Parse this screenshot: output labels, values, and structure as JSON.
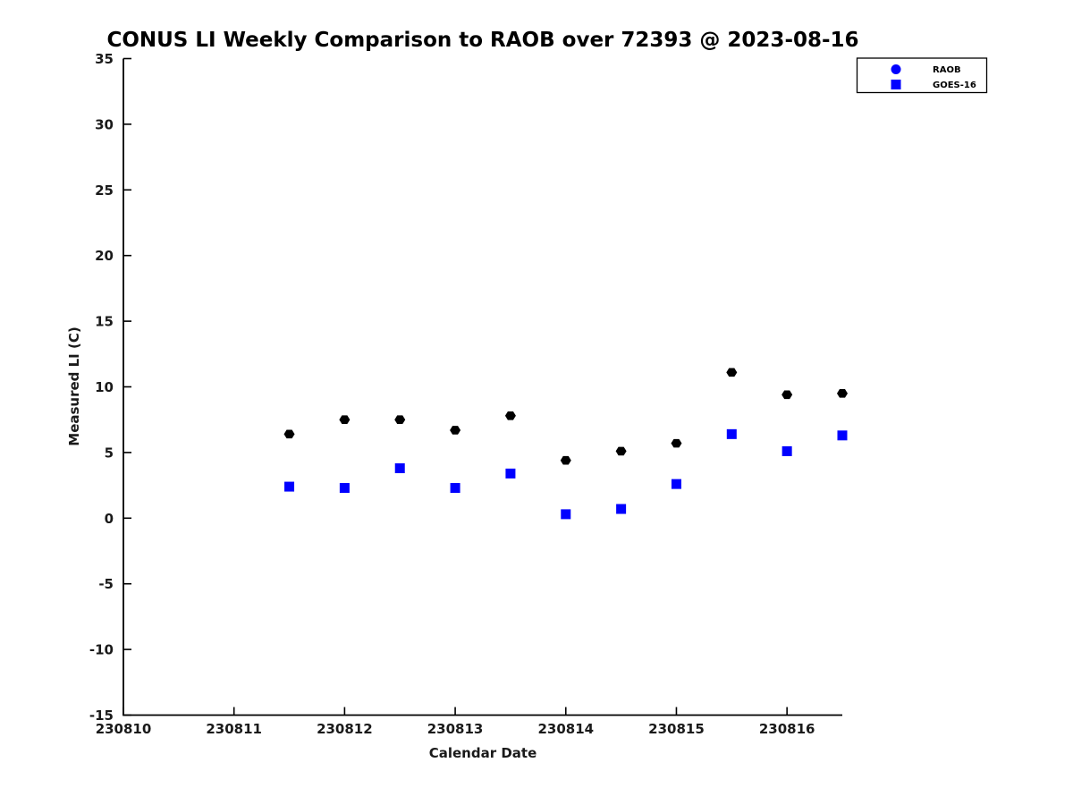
{
  "figure": {
    "background_color": "#ffffff"
  },
  "chart_data": {
    "type": "scatter",
    "title": "CONUS LI Weekly Comparison to RAOB over 72393 @ 2023-08-16",
    "xlabel": "Calendar Date",
    "ylabel": "Measured LI (C)",
    "xlim": [
      230810,
      230816.5
    ],
    "ylim": [
      -15,
      35
    ],
    "x_ticks": [
      230810,
      230811,
      230812,
      230813,
      230814,
      230815,
      230816
    ],
    "y_ticks": [
      -15,
      -10,
      -5,
      0,
      5,
      10,
      15,
      20,
      25,
      30,
      35
    ],
    "grid": false,
    "legend_position": "top-right-outside",
    "x": [
      230811.5,
      230812,
      230812.5,
      230813,
      230813.5,
      230814,
      230814.5,
      230815,
      230815.5,
      230816,
      230816.5
    ],
    "series": [
      {
        "name": "RAOB",
        "marker": "hexagon",
        "plot_color": "#000000",
        "legend_marker": "circle",
        "legend_marker_color": "#0000ff",
        "values": [
          6.4,
          7.5,
          7.5,
          6.7,
          7.8,
          4.4,
          5.1,
          5.7,
          11.1,
          9.4,
          9.5
        ]
      },
      {
        "name": "GOES-16",
        "marker": "square",
        "plot_color": "#0000ff",
        "legend_marker": "square",
        "legend_marker_color": "#0000ff",
        "values": [
          2.4,
          2.3,
          3.8,
          2.3,
          3.4,
          0.3,
          0.7,
          2.6,
          6.4,
          5.1,
          6.3
        ]
      }
    ],
    "axis_color": "#000000"
  }
}
